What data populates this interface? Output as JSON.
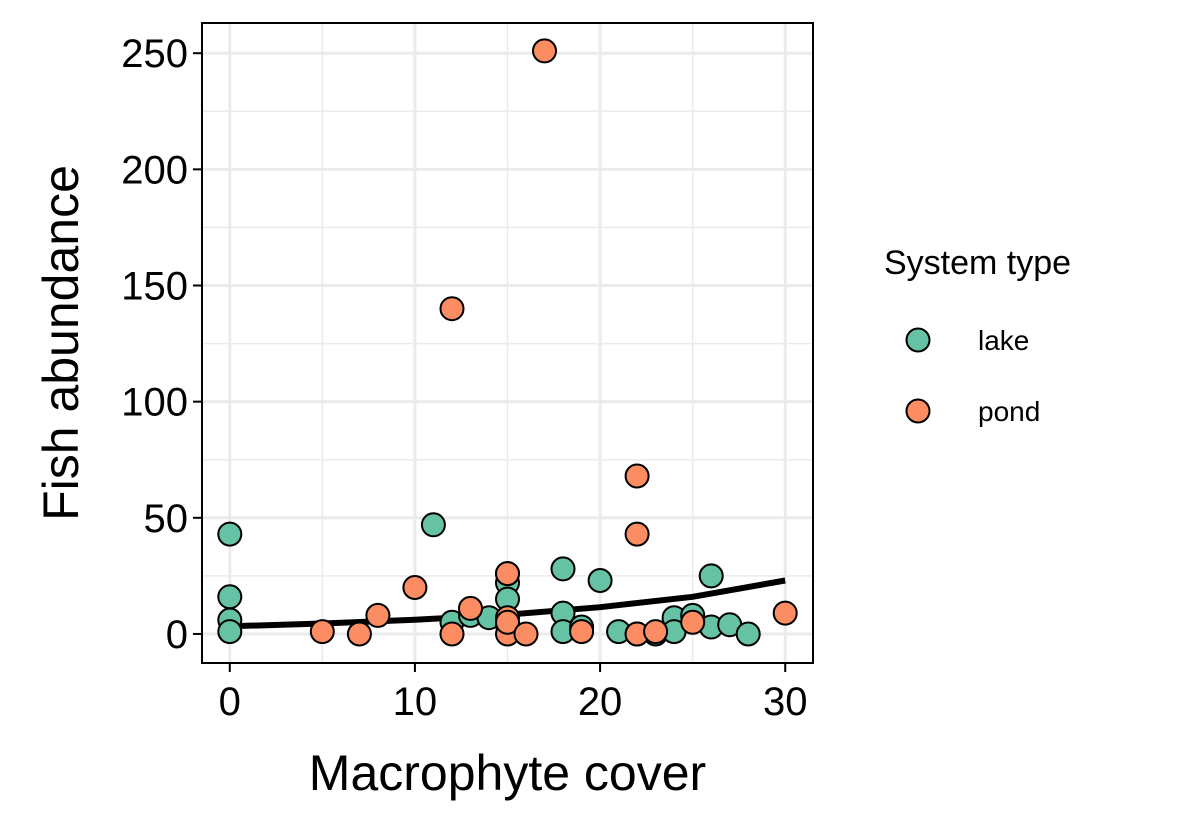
{
  "chart_data": {
    "type": "scatter",
    "title": "",
    "xlabel": "Macrophyte cover",
    "ylabel": "Fish abundance",
    "xlim": [
      -1.5,
      31.5
    ],
    "ylim": [
      -12.5,
      263
    ],
    "x_ticks": [
      0,
      10,
      20,
      30
    ],
    "y_ticks": [
      0,
      50,
      100,
      150,
      200,
      250
    ],
    "x_tick_labels": [
      "0",
      "10",
      "20",
      "30"
    ],
    "y_tick_labels": [
      "0",
      "50",
      "100",
      "150",
      "200",
      "250"
    ],
    "grid": true,
    "legend": {
      "title": "System type",
      "position": "right",
      "entries": [
        "lake",
        "pond"
      ]
    },
    "colors": {
      "lake": "#66c2a5",
      "pond": "#fc8d62",
      "outline": "#000000",
      "grid": "#ebebeb",
      "fit": "#000000"
    },
    "series": [
      {
        "name": "lake",
        "x": [
          0,
          0,
          0,
          0,
          11,
          12,
          13,
          14,
          15,
          15,
          15,
          18,
          18,
          18,
          19,
          20,
          21,
          22,
          23,
          24,
          24,
          25,
          26,
          26,
          27,
          28
        ],
        "y": [
          43,
          16,
          6,
          1,
          47,
          5,
          8,
          7,
          22,
          15,
          26,
          28,
          9,
          1,
          3,
          23,
          1,
          0,
          0,
          7,
          1,
          8,
          25,
          3,
          4,
          0
        ]
      },
      {
        "name": "pond",
        "x": [
          5,
          7,
          8,
          10,
          12,
          12,
          13,
          15,
          15,
          15,
          15,
          15,
          16,
          17,
          19,
          22,
          22,
          22,
          23,
          25,
          30
        ],
        "y": [
          1,
          0,
          8,
          20,
          140,
          0,
          11,
          26,
          7,
          4,
          0,
          5,
          0,
          251,
          1,
          68,
          43,
          0,
          1,
          5,
          9
        ]
      }
    ],
    "fit_line": {
      "type": "exponential",
      "x": [
        0,
        5,
        10,
        15,
        20,
        25,
        30
      ],
      "y": [
        3.3,
        4.5,
        6.1,
        8.3,
        11.5,
        16,
        23
      ]
    }
  }
}
